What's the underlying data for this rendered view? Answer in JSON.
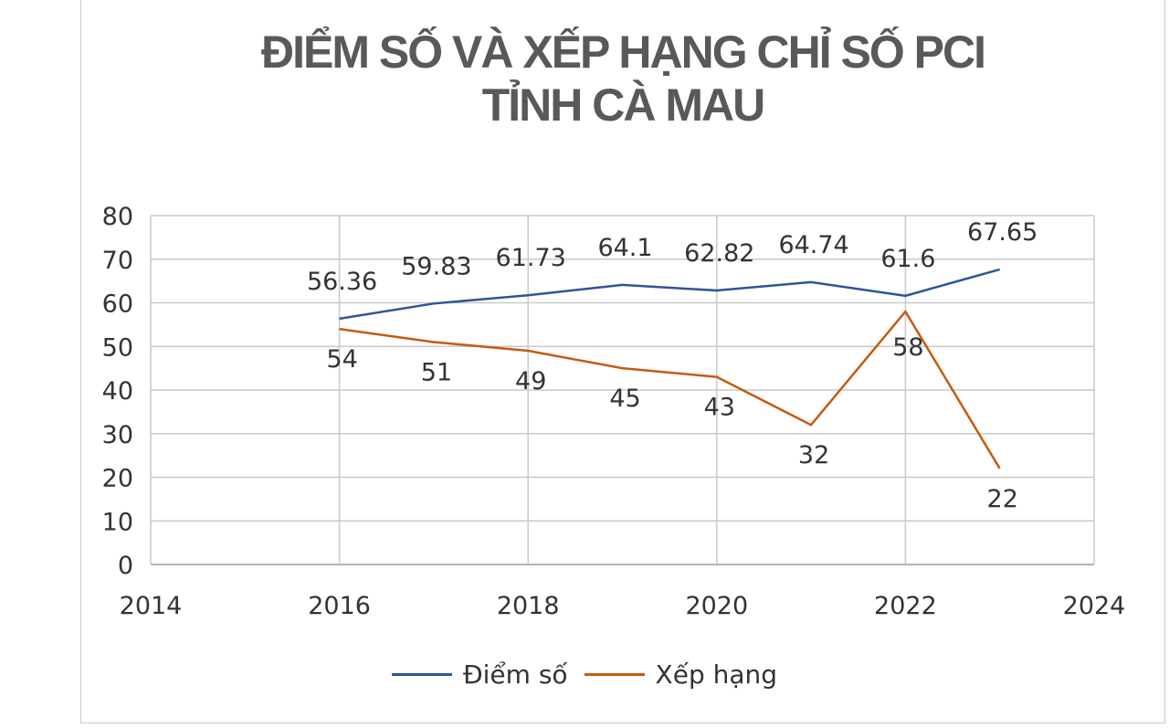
{
  "chart_data": {
    "type": "line",
    "title_line1": "ĐIỂM SỐ VÀ XẾP HẠNG CHỈ SỐ PCI",
    "title_line2": "TỈNH CÀ MAU",
    "xlim": [
      2014,
      2024
    ],
    "ylim": [
      0,
      80
    ],
    "x_ticks": [
      2014,
      2016,
      2018,
      2020,
      2022,
      2024
    ],
    "y_ticks": [
      0,
      10,
      20,
      30,
      40,
      50,
      60,
      70,
      80
    ],
    "grid": true,
    "legend_position": "bottom",
    "x": [
      2016,
      2017,
      2018,
      2019,
      2020,
      2021,
      2022,
      2023
    ],
    "series": [
      {
        "name": "Điểm số",
        "color": "#2f5597",
        "values": [
          56.36,
          59.83,
          61.73,
          64.1,
          62.82,
          64.74,
          61.6,
          67.65
        ],
        "labels": [
          "56.36",
          "59.83",
          "61.73",
          "64.1",
          "62.82",
          "64.74",
          "61.6",
          "67.65"
        ]
      },
      {
        "name": "Xếp hạng",
        "color": "#c55a11",
        "values": [
          54,
          51,
          49,
          45,
          43,
          32,
          58,
          22
        ],
        "labels": [
          "54",
          "51",
          "49",
          "45",
          "43",
          "32",
          "58",
          "22"
        ]
      }
    ]
  }
}
